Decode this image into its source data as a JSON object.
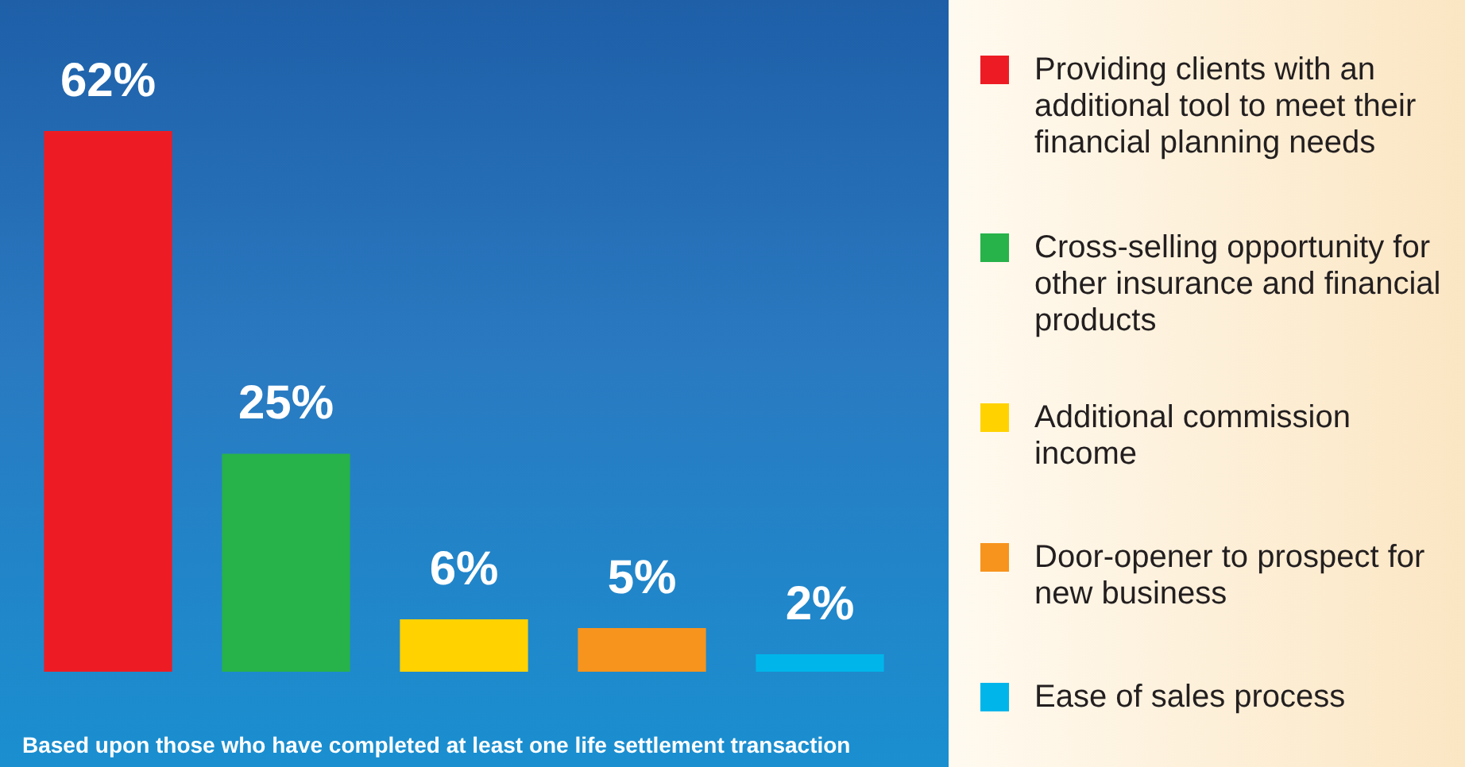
{
  "chart_data": {
    "type": "bar",
    "categories": [
      null,
      null,
      null,
      null,
      null
    ],
    "series": [
      {
        "name": "Providing clients with an additional tool to meet their financial planning needs",
        "color": "#ed1c24",
        "values": [
          62,
          null,
          null,
          null,
          null
        ],
        "value_labels": [
          "62%",
          null,
          null,
          null,
          null
        ]
      },
      {
        "name": "Cross-selling opportunity for other insurance and financial products",
        "color": "#27b24a",
        "values": [
          null,
          25,
          null,
          null,
          null
        ],
        "value_labels": [
          null,
          "25%",
          null,
          null,
          null
        ]
      },
      {
        "name": "Additional commission income",
        "color": "#ffd200",
        "values": [
          null,
          null,
          6,
          null,
          null
        ],
        "value_labels": [
          null,
          null,
          "6%",
          null,
          null
        ]
      },
      {
        "name": "Door-opener to prospect for new business",
        "color": "#f7941d",
        "values": [
          null,
          null,
          null,
          5,
          null
        ],
        "value_labels": [
          null,
          null,
          null,
          "5%",
          null
        ]
      },
      {
        "name": "Ease of sales process",
        "color": "#00b5ea",
        "values": [
          null,
          null,
          null,
          null,
          2
        ],
        "value_labels": [
          null,
          null,
          null,
          null,
          "2%"
        ]
      }
    ],
    "stacked": true,
    "tick_labels": false,
    "legend": "right",
    "annotations": [
      "Based upon those who have completed at least one life settlement transaction"
    ]
  }
}
